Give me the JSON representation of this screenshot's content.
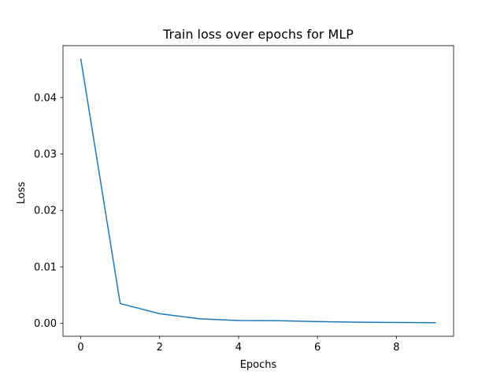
{
  "chart_data": {
    "type": "line",
    "title": "Train loss over epochs for MLP",
    "xlabel": "Epochs",
    "ylabel": "Loss",
    "xlim": [
      -0.45,
      9.45
    ],
    "ylim": [
      -0.0023,
      0.0492
    ],
    "xticks": [
      0,
      2,
      4,
      6,
      8
    ],
    "xtick_labels": [
      "0",
      "2",
      "4",
      "6",
      "8"
    ],
    "yticks": [
      0.0,
      0.01,
      0.02,
      0.03,
      0.04
    ],
    "ytick_labels": [
      "0.00",
      "0.01",
      "0.02",
      "0.03",
      "0.04"
    ],
    "grid": false,
    "series": [
      {
        "color": "#1f77b4",
        "x": [
          0,
          1,
          2,
          3,
          4,
          5,
          6,
          7,
          8,
          9
        ],
        "values": [
          0.0469,
          0.0035,
          0.0017,
          0.0008,
          0.0005,
          0.00045,
          0.0003,
          0.0002,
          0.00015,
          0.0001
        ]
      }
    ]
  }
}
